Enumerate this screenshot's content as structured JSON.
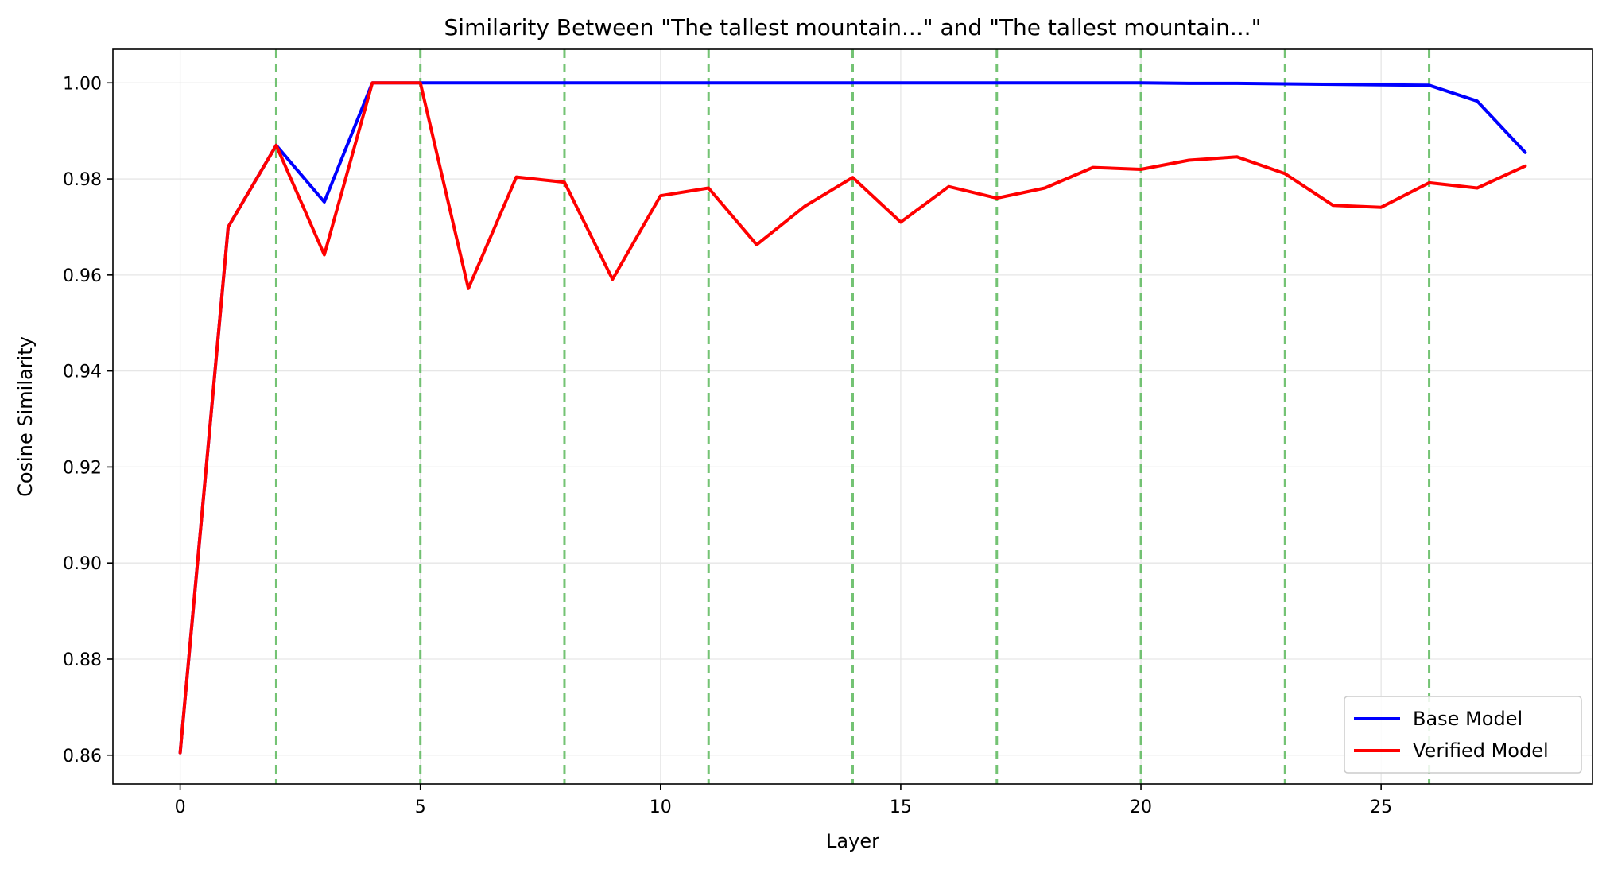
{
  "chart_data": {
    "type": "line",
    "title": "Similarity Between \"The tallest mountain...\" and \"The tallest mountain...\"",
    "xlabel": "Layer",
    "ylabel": "Cosine Similarity",
    "xlim": [
      -1.4,
      29.4
    ],
    "ylim": [
      0.854,
      1.007
    ],
    "xticks": [
      0,
      5,
      10,
      15,
      20,
      25
    ],
    "yticks": [
      0.86,
      0.88,
      0.9,
      0.92,
      0.94,
      0.96,
      0.98,
      1.0
    ],
    "ytick_labels": [
      "0.86",
      "0.88",
      "0.90",
      "0.92",
      "0.94",
      "0.96",
      "0.98",
      "1.00"
    ],
    "grid": true,
    "legend_position": "lower-right",
    "x": [
      0,
      1,
      2,
      3,
      4,
      5,
      6,
      7,
      8,
      9,
      10,
      11,
      12,
      13,
      14,
      15,
      16,
      17,
      18,
      19,
      20,
      21,
      22,
      23,
      24,
      25,
      26,
      27,
      28
    ],
    "series": [
      {
        "name": "Base Model",
        "color": "#0000ff",
        "values": [
          0.8605,
          0.97,
          0.987,
          0.9752,
          1.0,
          1.0,
          1.0,
          1.0,
          1.0,
          1.0,
          1.0,
          1.0,
          1.0,
          1.0,
          1.0,
          1.0,
          1.0,
          1.0,
          1.0,
          1.0,
          1.0,
          0.9999,
          0.9999,
          0.9998,
          0.9997,
          0.9996,
          0.9995,
          0.9962,
          0.9855
        ]
      },
      {
        "name": "Verified Model",
        "color": "#ff0000",
        "values": [
          0.8605,
          0.97,
          0.987,
          0.9642,
          1.0,
          1.0,
          0.9572,
          0.9804,
          0.9793,
          0.9591,
          0.9765,
          0.9781,
          0.9663,
          0.9743,
          0.9803,
          0.971,
          0.9784,
          0.976,
          0.9781,
          0.9824,
          0.982,
          0.9839,
          0.9846,
          0.9811,
          0.9745,
          0.9741,
          0.9792,
          0.9781,
          0.9827
        ]
      }
    ],
    "vlines": {
      "color": "#5cb85c",
      "style": "dashed",
      "x": [
        2,
        5,
        8,
        11,
        14,
        17,
        20,
        23,
        26
      ]
    }
  }
}
